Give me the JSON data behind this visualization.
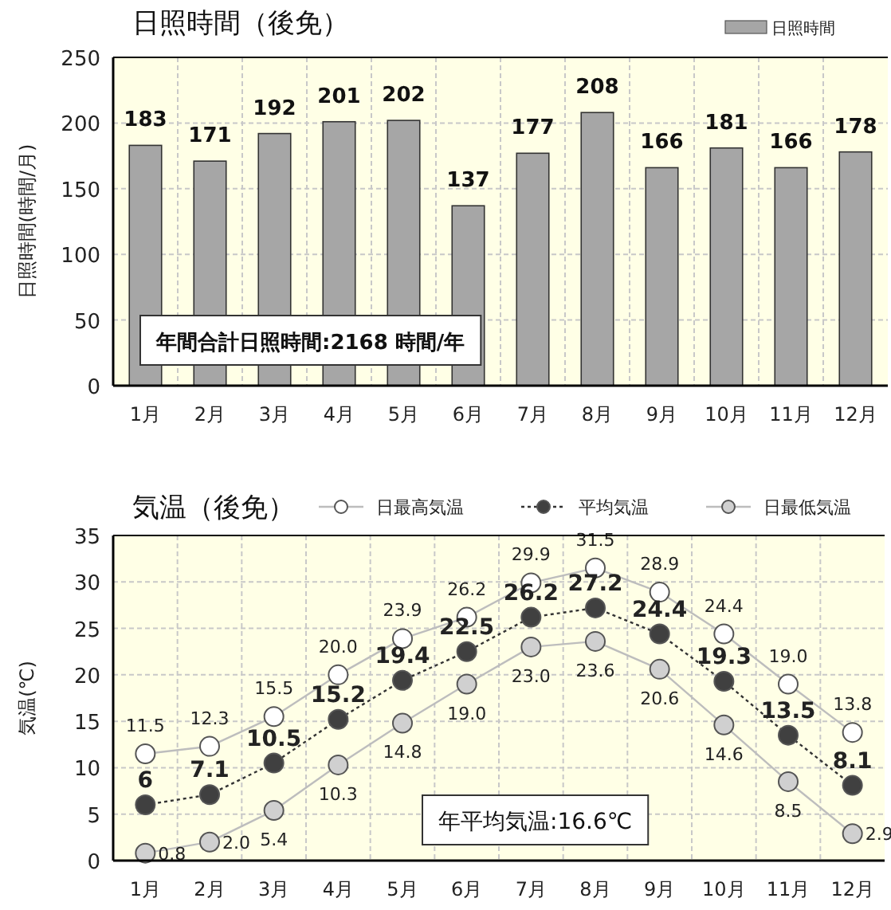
{
  "chart_data": [
    {
      "type": "bar",
      "title": "日照時間（後免）",
      "ylabel": "日照時間(時間/月)",
      "categories": [
        "1月",
        "2月",
        "3月",
        "4月",
        "5月",
        "6月",
        "7月",
        "8月",
        "9月",
        "10月",
        "11月",
        "12月"
      ],
      "series": [
        {
          "name": "日照時間",
          "color": "#a6a6a6",
          "values": [
            183,
            171,
            192,
            201,
            202,
            137,
            177,
            208,
            166,
            181,
            166,
            178
          ]
        }
      ],
      "ylim": [
        0,
        250
      ],
      "yticks": [
        0,
        50,
        100,
        150,
        200,
        250
      ],
      "grid": true,
      "legend": "top right",
      "data_labels": true,
      "annotations": [
        "年間合計日照時間:2168 時間/年"
      ]
    },
    {
      "type": "line",
      "title": "気温（後免）",
      "ylabel": "気温(℃)",
      "categories": [
        "1月",
        "2月",
        "3月",
        "4月",
        "5月",
        "6月",
        "7月",
        "8月",
        "9月",
        "10月",
        "11月",
        "12月"
      ],
      "series": [
        {
          "name": "日最高気温",
          "color": "#ffffff",
          "line_style": "solid",
          "values": [
            11.5,
            12.3,
            15.5,
            20.0,
            23.9,
            26.2,
            29.9,
            31.5,
            28.9,
            24.4,
            19.0,
            13.8
          ],
          "value_labels": [
            "11.5",
            "12.3",
            "15.5",
            "20.0",
            "23.9",
            "26.2",
            "29.9",
            "31.5",
            "28.9",
            "24.4",
            "19.0",
            "13.8"
          ]
        },
        {
          "name": "平均気温",
          "color": "#404040",
          "line_style": "dotted",
          "values": [
            6,
            7.1,
            10.5,
            15.2,
            19.4,
            22.5,
            26.2,
            27.2,
            24.4,
            19.3,
            13.5,
            8.1
          ],
          "value_labels": [
            "6",
            "7.1",
            "10.5",
            "15.2",
            "19.4",
            "22.5",
            "26.2",
            "27.2",
            "24.4",
            "19.3",
            "13.5",
            "8.1"
          ]
        },
        {
          "name": "日最低気温",
          "color": "#d0d0d0",
          "line_style": "solid",
          "values": [
            0.8,
            2.0,
            5.4,
            10.3,
            14.8,
            19.0,
            23.0,
            23.6,
            20.6,
            14.6,
            8.5,
            2.9
          ],
          "value_labels": [
            "0.8",
            "2.0",
            "5.4",
            "10.3",
            "14.8",
            "19.0",
            "23.0",
            "23.6",
            "20.6",
            "14.6",
            "8.5",
            "2.9"
          ]
        }
      ],
      "ylim": [
        0,
        35
      ],
      "yticks": [
        0,
        5,
        10,
        15,
        20,
        25,
        30,
        35
      ],
      "grid": true,
      "legend": "top",
      "marker": "circle",
      "annotations": [
        "年平均気温:16.6℃"
      ]
    }
  ]
}
